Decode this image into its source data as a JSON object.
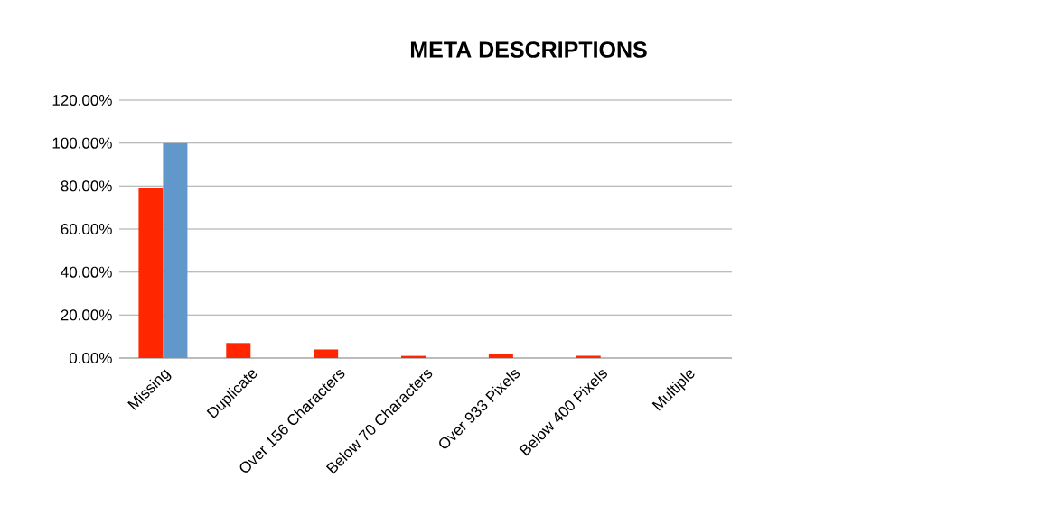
{
  "chart_data": {
    "type": "bar",
    "title": "META DESCRIPTIONS",
    "categories": [
      "Missing",
      "Duplicate",
      "Over 156 Characters",
      "Below 70 Characters",
      "Over 933 Pixels",
      "Below 400 Pixels",
      "Multiple"
    ],
    "series": [
      {
        "color": "#ff2600",
        "values": [
          79,
          7,
          4,
          1,
          2,
          1,
          0
        ]
      },
      {
        "color": "#6197cb",
        "values": [
          100,
          0,
          0,
          0,
          0,
          0,
          0
        ]
      }
    ],
    "ylim": [
      0,
      120
    ],
    "yticks": [
      {
        "value": 0,
        "label": "0.00%"
      },
      {
        "value": 20,
        "label": "20.00%"
      },
      {
        "value": 40,
        "label": "40.00%"
      },
      {
        "value": 60,
        "label": "60.00%"
      },
      {
        "value": 80,
        "label": "80.00%"
      },
      {
        "value": 100,
        "label": "100.00%"
      },
      {
        "value": 120,
        "label": "120.00%"
      }
    ],
    "grid": "y"
  }
}
